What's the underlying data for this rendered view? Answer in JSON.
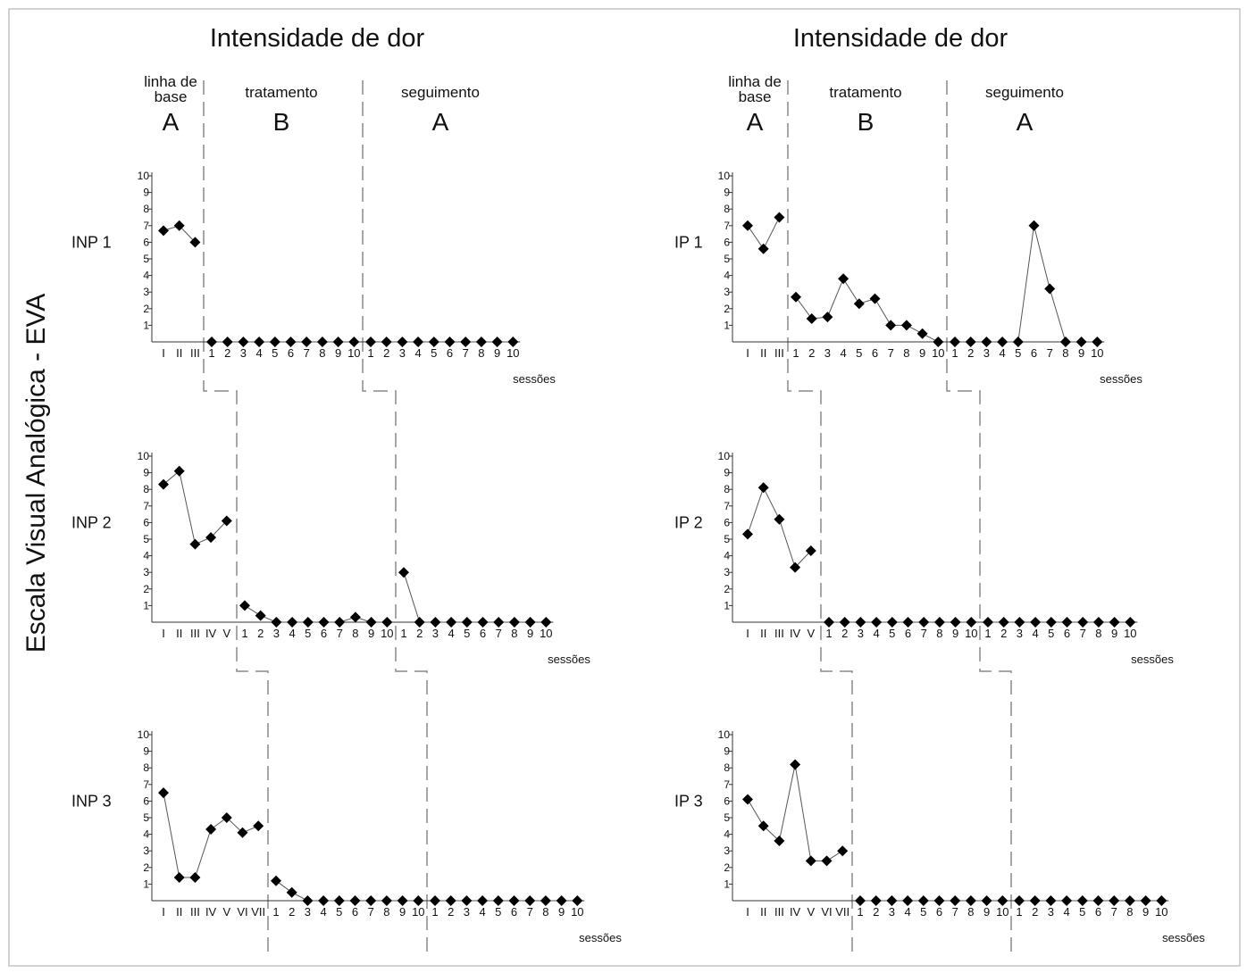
{
  "ylabel": "Escala Visual Analógica - EVA",
  "session_label": "sessões",
  "y_ticks": [
    "1",
    "2",
    "3",
    "4",
    "5",
    "6",
    "7",
    "8",
    "9",
    "10"
  ],
  "phase_labels": {
    "baseline": "linha de base",
    "baseline_line1": "linha de",
    "baseline_line2": "base",
    "treatment": "tratamento",
    "followup": "seguimento",
    "letters": [
      "A",
      "B",
      "A"
    ]
  },
  "chart_data": [
    {
      "type": "line",
      "title": "Intensidade de dor",
      "ylim": [
        0,
        10
      ],
      "grid": false,
      "subjects": [
        {
          "name": "INP 1",
          "phases": [
            {
              "phase": "linha de base",
              "letter": "A",
              "x": [
                "I",
                "II",
                "III"
              ],
              "values": [
                6.7,
                7.0,
                6.0
              ]
            },
            {
              "phase": "tratamento",
              "letter": "B",
              "x": [
                "1",
                "2",
                "3",
                "4",
                "5",
                "6",
                "7",
                "8",
                "9",
                "10"
              ],
              "values": [
                0,
                0,
                0,
                0,
                0,
                0,
                0,
                0,
                0,
                0
              ]
            },
            {
              "phase": "seguimento",
              "letter": "A",
              "x": [
                "1",
                "2",
                "3",
                "4",
                "5",
                "6",
                "7",
                "8",
                "9",
                "10"
              ],
              "values": [
                0,
                0,
                0,
                0,
                0,
                0,
                0,
                0,
                0,
                0
              ]
            }
          ]
        },
        {
          "name": "INP 2",
          "phases": [
            {
              "phase": "linha de base",
              "letter": "A",
              "x": [
                "I",
                "II",
                "III",
                "IV",
                "V"
              ],
              "values": [
                8.3,
                9.1,
                4.7,
                5.1,
                6.1
              ]
            },
            {
              "phase": "tratamento",
              "letter": "B",
              "x": [
                "1",
                "2",
                "3",
                "4",
                "5",
                "6",
                "7",
                "8",
                "9",
                "10"
              ],
              "values": [
                1.0,
                0.4,
                0,
                0,
                0,
                0,
                0,
                0.3,
                0,
                0
              ]
            },
            {
              "phase": "seguimento",
              "letter": "A",
              "x": [
                "1",
                "2",
                "3",
                "4",
                "5",
                "6",
                "7",
                "8",
                "9",
                "10"
              ],
              "values": [
                3.0,
                0,
                0,
                0,
                0,
                0,
                0,
                0,
                0,
                0
              ]
            }
          ]
        },
        {
          "name": "INP 3",
          "phases": [
            {
              "phase": "linha de base",
              "letter": "A",
              "x": [
                "I",
                "II",
                "III",
                "IV",
                "V",
                "VI",
                "VII"
              ],
              "values": [
                6.5,
                1.4,
                1.4,
                4.3,
                5.0,
                4.1,
                4.5
              ]
            },
            {
              "phase": "tratamento",
              "letter": "B",
              "x": [
                "1",
                "2",
                "3",
                "4",
                "5",
                "6",
                "7",
                "8",
                "9",
                "10"
              ],
              "values": [
                1.2,
                0.5,
                0,
                0,
                0,
                0,
                0,
                0,
                0,
                0
              ]
            },
            {
              "phase": "seguimento",
              "letter": "A",
              "x": [
                "1",
                "2",
                "3",
                "4",
                "5",
                "6",
                "7",
                "8",
                "9",
                "10"
              ],
              "values": [
                0,
                0,
                0,
                0,
                0,
                0,
                0,
                0,
                0,
                0
              ]
            }
          ]
        }
      ]
    },
    {
      "type": "line",
      "title": "Intensidade de dor",
      "ylim": [
        0,
        10
      ],
      "grid": false,
      "subjects": [
        {
          "name": "IP 1",
          "phases": [
            {
              "phase": "linha de base",
              "letter": "A",
              "x": [
                "I",
                "II",
                "III"
              ],
              "values": [
                7.0,
                5.6,
                7.5
              ]
            },
            {
              "phase": "tratamento",
              "letter": "B",
              "x": [
                "1",
                "2",
                "3",
                "4",
                "5",
                "6",
                "7",
                "8",
                "9",
                "10"
              ],
              "values": [
                2.7,
                1.4,
                1.5,
                3.8,
                2.3,
                2.6,
                1.0,
                1.0,
                0.5,
                0
              ]
            },
            {
              "phase": "seguimento",
              "letter": "A",
              "x": [
                "1",
                "2",
                "3",
                "4",
                "5",
                "6",
                "7",
                "8",
                "9",
                "10"
              ],
              "values": [
                0,
                0,
                0,
                0,
                0,
                7.0,
                3.2,
                0,
                0,
                0
              ]
            }
          ]
        },
        {
          "name": "IP 2",
          "phases": [
            {
              "phase": "linha de base",
              "letter": "A",
              "x": [
                "I",
                "II",
                "III",
                "IV",
                "V"
              ],
              "values": [
                5.3,
                8.1,
                6.2,
                3.3,
                4.3
              ]
            },
            {
              "phase": "tratamento",
              "letter": "B",
              "x": [
                "1",
                "2",
                "3",
                "4",
                "5",
                "6",
                "7",
                "8",
                "9",
                "10"
              ],
              "values": [
                0,
                0,
                0,
                0,
                0,
                0,
                0,
                0,
                0,
                0
              ]
            },
            {
              "phase": "seguimento",
              "letter": "A",
              "x": [
                "1",
                "2",
                "3",
                "4",
                "5",
                "6",
                "7",
                "8",
                "9",
                "10"
              ],
              "values": [
                0,
                0,
                0,
                0,
                0,
                0,
                0,
                0,
                0,
                0
              ]
            }
          ]
        },
        {
          "name": "IP 3",
          "phases": [
            {
              "phase": "linha de base",
              "letter": "A",
              "x": [
                "I",
                "II",
                "III",
                "IV",
                "V",
                "VI",
                "VII"
              ],
              "values": [
                6.1,
                4.5,
                3.6,
                8.2,
                2.4,
                2.4,
                3.0
              ]
            },
            {
              "phase": "tratamento",
              "letter": "B",
              "x": [
                "1",
                "2",
                "3",
                "4",
                "5",
                "6",
                "7",
                "8",
                "9",
                "10"
              ],
              "values": [
                0,
                0,
                0,
                0,
                0,
                0,
                0,
                0,
                0,
                0
              ]
            },
            {
              "phase": "seguimento",
              "letter": "A",
              "x": [
                "1",
                "2",
                "3",
                "4",
                "5",
                "6",
                "7",
                "8",
                "9",
                "10"
              ],
              "values": [
                0,
                0,
                0,
                0,
                0,
                0,
                0,
                0,
                0,
                0
              ]
            }
          ]
        }
      ]
    }
  ]
}
